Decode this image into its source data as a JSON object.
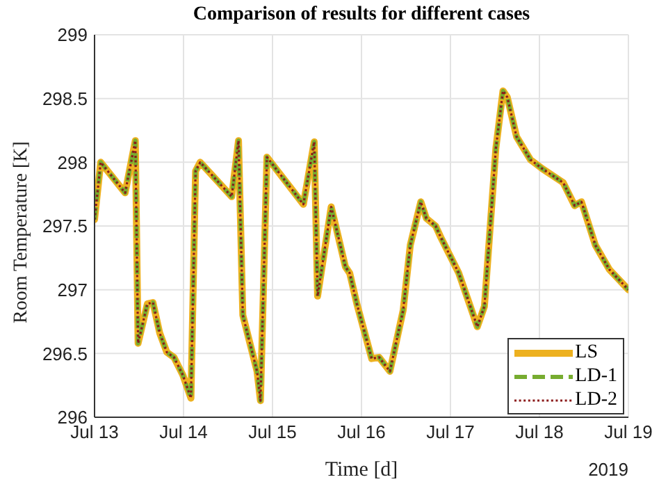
{
  "chart_data": {
    "type": "line",
    "title": "Comparison of results for different cases",
    "xlabel": "Time [d]",
    "ylabel": "Room Temperature [K]",
    "annotations": [
      "2019"
    ],
    "x": [
      "2019-07-13T00:00",
      "2019-07-13T01:40",
      "2019-07-13T08:15",
      "2019-07-13T11:00",
      "2019-07-13T11:45",
      "2019-07-13T14:15",
      "2019-07-13T15:45",
      "2019-07-13T17:35",
      "2019-07-13T19:30",
      "2019-07-13T21:25",
      "2019-07-13T23:50",
      "2019-07-14T02:00",
      "2019-07-14T03:15",
      "2019-07-14T04:30",
      "2019-07-14T13:00",
      "2019-07-14T14:50",
      "2019-07-14T16:00",
      "2019-07-14T19:50",
      "2019-07-14T20:45",
      "2019-07-14T22:30",
      "2019-07-15T08:20",
      "2019-07-15T11:15",
      "2019-07-15T12:10",
      "2019-07-15T15:50",
      "2019-07-15T19:40",
      "2019-07-15T20:50",
      "2019-07-15T22:45",
      "2019-07-16T02:45",
      "2019-07-16T04:45",
      "2019-07-16T07:40",
      "2019-07-16T11:15",
      "2019-07-16T13:10",
      "2019-07-16T16:00",
      "2019-07-16T17:30",
      "2019-07-16T20:00",
      "2019-07-16T21:15",
      "2019-07-17T02:15",
      "2019-07-17T07:15",
      "2019-07-17T09:10",
      "2019-07-17T12:15",
      "2019-07-17T14:10",
      "2019-07-17T15:20",
      "2019-07-17T17:50",
      "2019-07-17T21:35",
      "2019-07-18T00:45",
      "2019-07-18T06:25",
      "2019-07-18T09:30",
      "2019-07-18T11:20",
      "2019-07-18T15:05",
      "2019-07-18T18:50",
      "2019-07-19T00:00"
    ],
    "series": [
      {
        "name": "LS",
        "color": "#edb120",
        "line_style": "solid",
        "values": [
          297.55,
          298.0,
          297.76,
          298.17,
          296.58,
          296.89,
          296.9,
          296.66,
          296.51,
          296.47,
          296.33,
          296.15,
          297.93,
          298.0,
          297.73,
          298.17,
          296.8,
          296.36,
          296.13,
          298.04,
          297.67,
          298.16,
          296.95,
          297.65,
          297.18,
          297.13,
          296.89,
          296.46,
          296.47,
          296.36,
          296.84,
          297.35,
          297.69,
          297.56,
          297.5,
          297.42,
          297.13,
          296.71,
          296.87,
          298.11,
          298.56,
          298.51,
          298.2,
          298.02,
          297.95,
          297.84,
          297.66,
          297.69,
          297.35,
          297.16,
          297.0
        ]
      },
      {
        "name": "LD-1",
        "color": "#77ac30",
        "line_style": "dashed",
        "values": [
          297.55,
          298.0,
          297.76,
          298.17,
          296.58,
          296.89,
          296.9,
          296.66,
          296.51,
          296.47,
          296.33,
          296.15,
          297.93,
          298.0,
          297.73,
          298.17,
          296.8,
          296.36,
          296.13,
          298.04,
          297.67,
          298.16,
          296.95,
          297.65,
          297.18,
          297.13,
          296.89,
          296.46,
          296.47,
          296.36,
          296.84,
          297.35,
          297.69,
          297.56,
          297.5,
          297.42,
          297.13,
          296.71,
          296.87,
          298.11,
          298.56,
          298.51,
          298.2,
          298.02,
          297.95,
          297.84,
          297.66,
          297.69,
          297.35,
          297.16,
          297.0
        ]
      },
      {
        "name": "LD-2",
        "color": "#8b1a1a",
        "line_style": "dotted",
        "values": [
          297.55,
          298.0,
          297.76,
          298.17,
          296.58,
          296.89,
          296.9,
          296.66,
          296.51,
          296.47,
          296.33,
          296.15,
          297.93,
          298.0,
          297.73,
          298.17,
          296.8,
          296.36,
          296.13,
          298.04,
          297.67,
          298.16,
          296.95,
          297.65,
          297.18,
          297.13,
          296.89,
          296.46,
          296.47,
          296.36,
          296.84,
          297.35,
          297.69,
          297.56,
          297.5,
          297.42,
          297.13,
          296.71,
          296.87,
          298.11,
          298.56,
          298.51,
          298.2,
          298.02,
          297.95,
          297.84,
          297.66,
          297.69,
          297.35,
          297.16,
          297.0
        ]
      }
    ],
    "xlim": [
      "2019-07-13",
      "2019-07-19"
    ],
    "xticks": [
      {
        "value": "2019-07-13",
        "label": "Jul 13"
      },
      {
        "value": "2019-07-14",
        "label": "Jul 14"
      },
      {
        "value": "2019-07-15",
        "label": "Jul 15"
      },
      {
        "value": "2019-07-16",
        "label": "Jul 16"
      },
      {
        "value": "2019-07-17",
        "label": "Jul 17"
      },
      {
        "value": "2019-07-18",
        "label": "Jul 18"
      },
      {
        "value": "2019-07-19",
        "label": "Jul 19"
      }
    ],
    "ylim": [
      296,
      299
    ],
    "yticks": [
      296,
      296.5,
      297,
      297.5,
      298,
      298.5,
      299
    ],
    "grid": true,
    "legend": "bottom right"
  }
}
